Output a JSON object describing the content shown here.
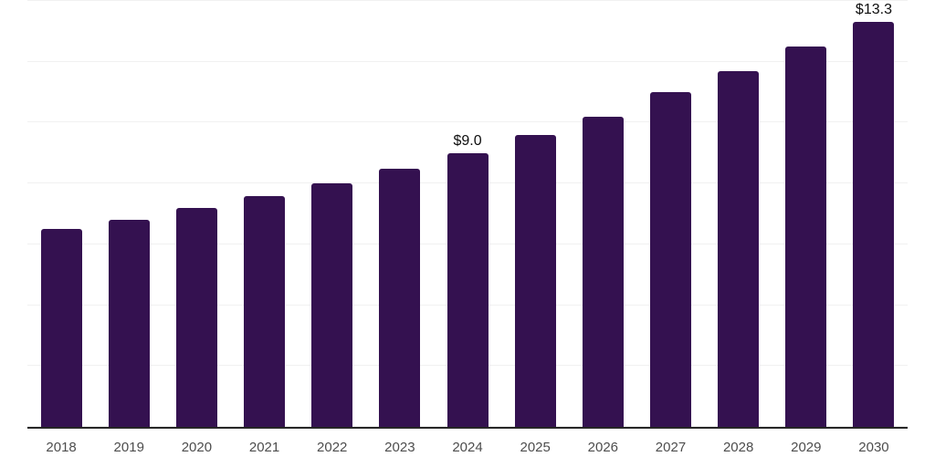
{
  "chart_data": {
    "type": "bar",
    "categories": [
      "2018",
      "2019",
      "2020",
      "2021",
      "2022",
      "2023",
      "2024",
      "2025",
      "2026",
      "2027",
      "2028",
      "2029",
      "2030"
    ],
    "values": [
      6.5,
      6.8,
      7.2,
      7.6,
      8.0,
      8.5,
      9.0,
      9.6,
      10.2,
      11.0,
      11.7,
      12.5,
      13.3
    ],
    "point_labels": [
      "",
      "",
      "",
      "",
      "",
      "",
      "$9.0",
      "",
      "",
      "",
      "",
      "",
      "$13.3"
    ],
    "title": "",
    "xlabel": "",
    "ylabel": "",
    "ylim": [
      0,
      14
    ],
    "gridline_values": [
      0,
      2,
      4,
      6,
      8,
      10,
      12,
      14
    ],
    "grid": "horizontal",
    "legend": "none",
    "colors": {
      "bar": "#341150",
      "axis_line": "#262626",
      "gridline": "#f1f1f1",
      "x_label": "#4d4d4d",
      "data_label": "#0d0d0d",
      "background": "#ffffff"
    }
  }
}
